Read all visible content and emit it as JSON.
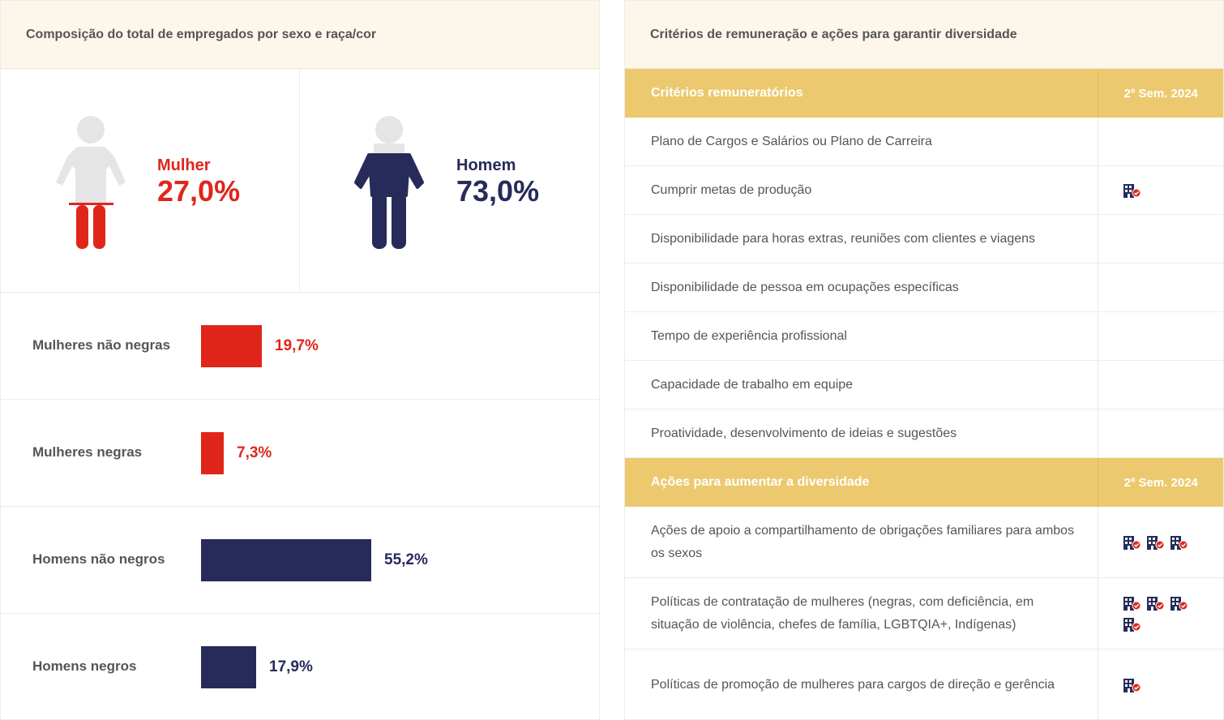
{
  "left_panel": {
    "title": "Composição do total de empregados por sexo e raça/cor",
    "female": {
      "label": "Mulher",
      "value": "27,0%"
    },
    "male": {
      "label": "Homem",
      "value": "73,0%"
    },
    "bars": [
      {
        "label": "Mulheres não negras",
        "value_text": "19,7%",
        "value": 19.7,
        "color": "#e0251b"
      },
      {
        "label": "Mulheres negras",
        "value_text": "7,3%",
        "value": 7.3,
        "color": "#e0251b"
      },
      {
        "label": "Homens não negros",
        "value_text": "55,2%",
        "value": 55.2,
        "color": "#262b5a"
      },
      {
        "label": "Homens negros",
        "value_text": "17,9%",
        "value": 17.9,
        "color": "#262b5a"
      }
    ]
  },
  "right_panel": {
    "title": "Critérios de remuneração e ações para garantir diversidade",
    "section1": {
      "header": "Critérios remuneratórios",
      "period": "2º Sem. 2024",
      "rows": [
        {
          "text": "Plano de Cargos e Salários ou Plano de Carreira",
          "icons": 0
        },
        {
          "text": "Cumprir metas de produção",
          "icons": 1
        },
        {
          "text": "Disponibilidade para horas extras, reuniões com clientes e viagens",
          "icons": 0
        },
        {
          "text": "Disponibilidade de pessoa em ocupações específicas",
          "icons": 0
        },
        {
          "text": "Tempo de experiência profissional",
          "icons": 0
        },
        {
          "text": "Capacidade de trabalho em equipe",
          "icons": 0
        },
        {
          "text": "Proatividade, desenvolvimento de ideias e sugestões",
          "icons": 0
        }
      ]
    },
    "section2": {
      "header": "Ações para aumentar a diversidade",
      "period": "2º Sem. 2024",
      "rows": [
        {
          "text": "Ações de apoio a compartilhamento de obrigações familiares para ambos os sexos",
          "icons": 3
        },
        {
          "text": "Políticas de contratação de mulheres (negras, com deficiência, em situação de violência, chefes de família, LGBTQIA+, Indígenas)",
          "icons": 4
        },
        {
          "text": "Políticas de promoção de mulheres para cargos de direção e gerência",
          "icons": 1
        }
      ]
    },
    "icon_name": "building-check-icon",
    "colors": {
      "header_gold": "#ecc96f",
      "icon_navy": "#262b5a",
      "icon_check_red": "#e0251b"
    }
  }
}
